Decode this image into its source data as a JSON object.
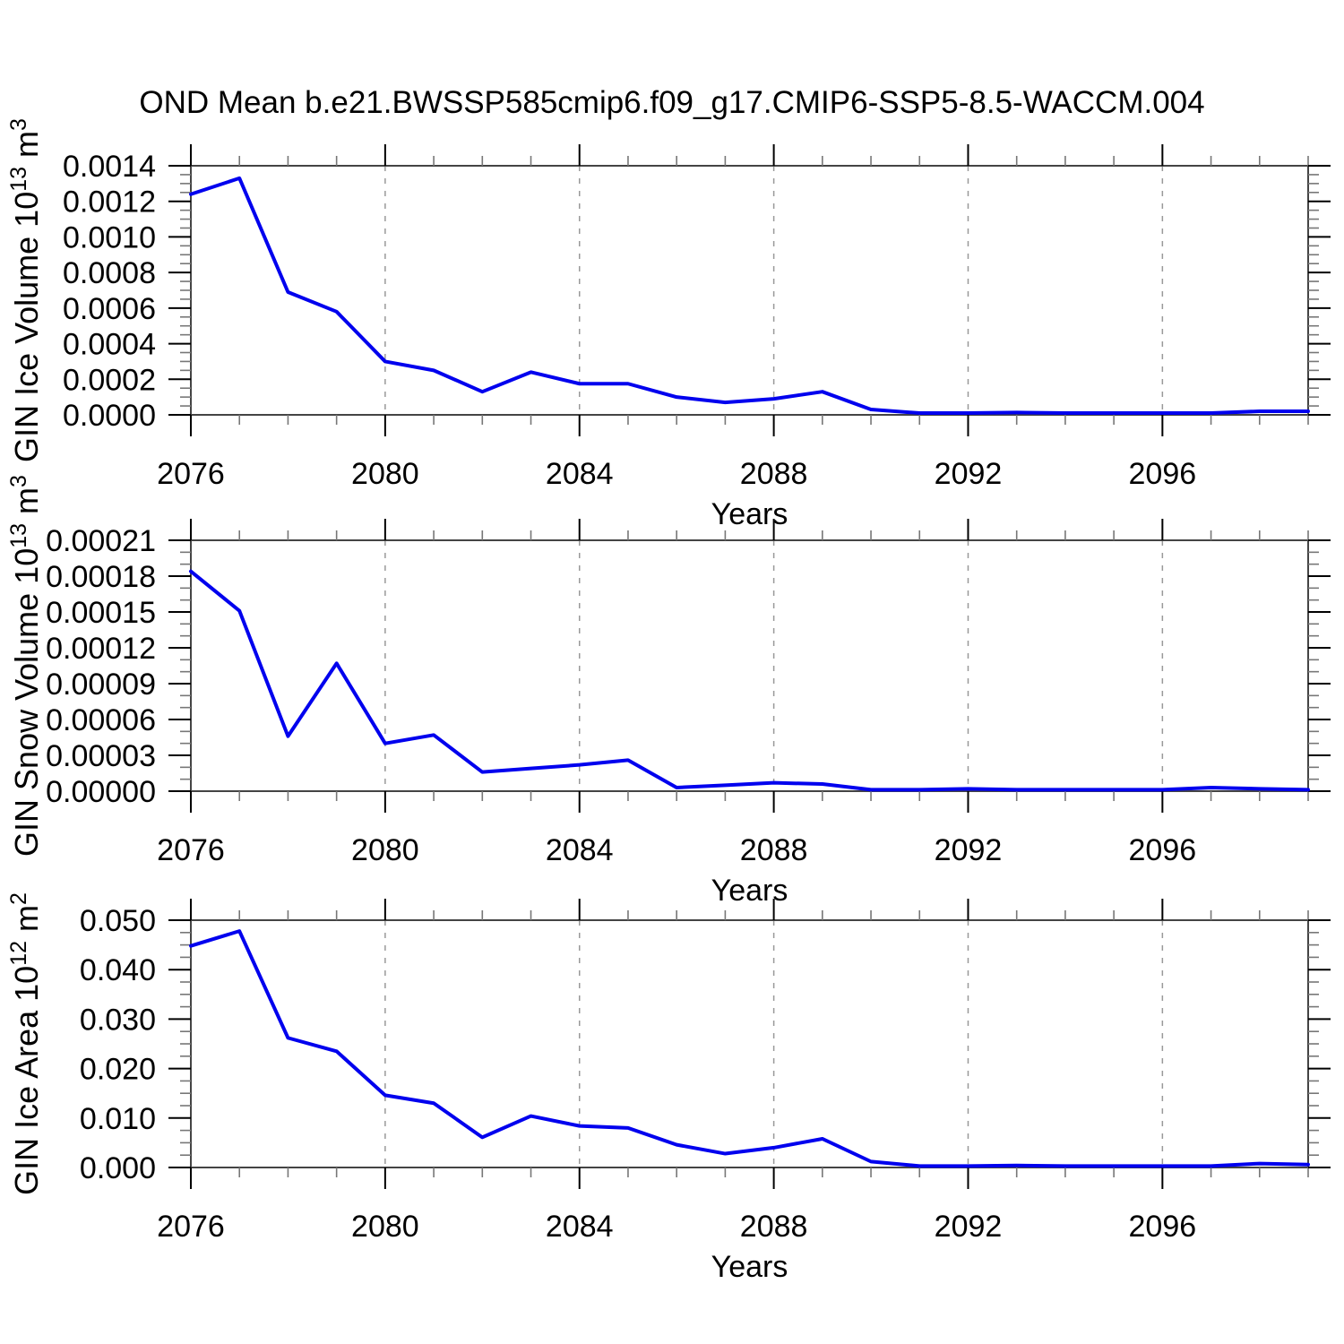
{
  "title": "OND Mean b.e21.BWSSP585cmip6.f09_g17.CMIP6-SSP5-8.5-WACCM.004",
  "colors": {
    "line": "#0000EE",
    "frame": "#444444",
    "tick_major": "#000000",
    "tick_minor": "#777777",
    "grid": "#999999",
    "text": "#000000",
    "background": "#ffffff"
  },
  "x_axis": {
    "label": "Years",
    "min": 2076,
    "max": 2099,
    "major_ticks": [
      2076,
      2080,
      2084,
      2088,
      2092,
      2096
    ],
    "tick_labels": [
      "2076",
      "2080",
      "2084",
      "2088",
      "2092",
      "2096"
    ],
    "minor_step": 1,
    "grid_years": [
      2080,
      2084,
      2088,
      2092,
      2096
    ]
  },
  "chart_data": [
    {
      "type": "line",
      "id": "gin-ice-volume",
      "ylabel_segments": [
        {
          "text": "GIN Ice Volume 10"
        },
        {
          "text": "13",
          "sup": true
        },
        {
          "text": " m"
        },
        {
          "text": "3",
          "sup": true
        }
      ],
      "xlabel": "Years",
      "y_min": 0.0,
      "y_max": 0.0014,
      "y_major_step": 0.0002,
      "y_minor_divisions": 4,
      "y_tick_labels": [
        "0.0000",
        "0.0002",
        "0.0004",
        "0.0006",
        "0.0008",
        "0.0010",
        "0.0012",
        "0.0014"
      ],
      "x": [
        2076,
        2077,
        2078,
        2079,
        2080,
        2081,
        2082,
        2083,
        2084,
        2085,
        2086,
        2087,
        2088,
        2089,
        2090,
        2091,
        2092,
        2093,
        2094,
        2095,
        2096,
        2097,
        2098,
        2099
      ],
      "values": [
        0.00124,
        0.00133,
        0.00069,
        0.00058,
        0.0003,
        0.00025,
        0.00013,
        0.00024,
        0.000175,
        0.000175,
        0.0001,
        7e-05,
        9e-05,
        0.00013,
        3e-05,
        1e-05,
        1e-05,
        1.3e-05,
        1e-05,
        1e-05,
        1e-05,
        1e-05,
        2e-05,
        2e-05
      ]
    },
    {
      "type": "line",
      "id": "gin-snow-volume",
      "ylabel_segments": [
        {
          "text": "GIN Snow Volume 10"
        },
        {
          "text": "13",
          "sup": true
        },
        {
          "text": " m"
        },
        {
          "text": "3",
          "sup": true
        }
      ],
      "xlabel": "Years",
      "y_min": 0.0,
      "y_max": 0.00021,
      "y_major_step": 3e-05,
      "y_minor_divisions": 3,
      "y_tick_labels": [
        "0.00000",
        "0.00003",
        "0.00006",
        "0.00009",
        "0.00012",
        "0.00015",
        "0.00018",
        "0.00021"
      ],
      "x": [
        2076,
        2077,
        2078,
        2079,
        2080,
        2081,
        2082,
        2083,
        2084,
        2085,
        2086,
        2087,
        2088,
        2089,
        2090,
        2091,
        2092,
        2093,
        2094,
        2095,
        2096,
        2097,
        2098,
        2099
      ],
      "values": [
        0.000184,
        0.000151,
        4.6e-05,
        0.000107,
        4e-05,
        4.7e-05,
        1.6e-05,
        1.9e-05,
        2.2e-05,
        2.6e-05,
        3e-06,
        5e-06,
        7e-06,
        6e-06,
        1.2e-06,
        1.2e-06,
        2e-06,
        1.2e-06,
        1.2e-06,
        1.2e-06,
        1.2e-06,
        3e-06,
        2e-06,
        1.2e-06
      ]
    },
    {
      "type": "line",
      "id": "gin-ice-area",
      "ylabel_segments": [
        {
          "text": "GIN Ice Area 10"
        },
        {
          "text": "12",
          "sup": true
        },
        {
          "text": " m"
        },
        {
          "text": "2",
          "sup": true
        }
      ],
      "xlabel": "Years",
      "y_min": 0.0,
      "y_max": 0.05,
      "y_major_step": 0.01,
      "y_minor_divisions": 4,
      "y_tick_labels": [
        "0.000",
        "0.010",
        "0.020",
        "0.030",
        "0.040",
        "0.050"
      ],
      "x": [
        2076,
        2077,
        2078,
        2079,
        2080,
        2081,
        2082,
        2083,
        2084,
        2085,
        2086,
        2087,
        2088,
        2089,
        2090,
        2091,
        2092,
        2093,
        2094,
        2095,
        2096,
        2097,
        2098,
        2099
      ],
      "values": [
        0.0448,
        0.0478,
        0.0262,
        0.0235,
        0.0146,
        0.013,
        0.0061,
        0.0104,
        0.0084,
        0.008,
        0.0046,
        0.0028,
        0.004,
        0.0058,
        0.0012,
        0.0003,
        0.0003,
        0.0004,
        0.0003,
        0.0003,
        0.0003,
        0.0003,
        0.0008,
        0.0006
      ]
    }
  ]
}
